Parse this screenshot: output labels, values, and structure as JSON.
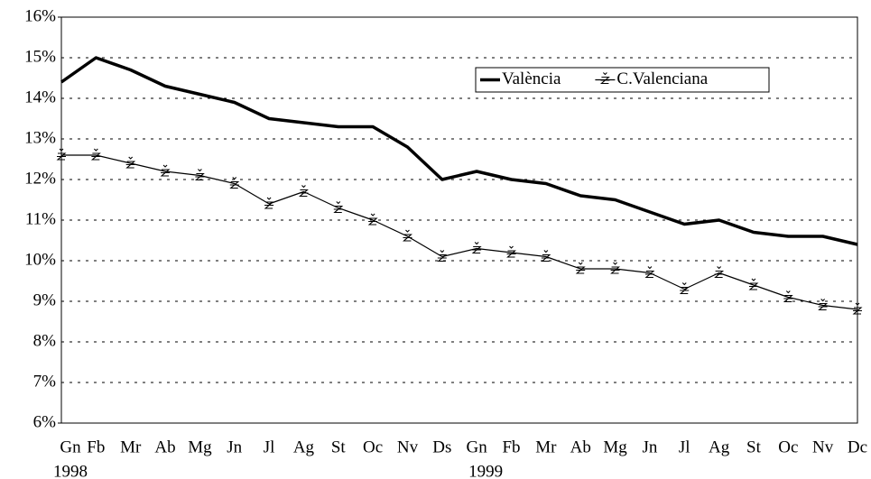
{
  "chart_data": {
    "type": "line",
    "categories": [
      "Gn",
      "Fb",
      "Mr",
      "Ab",
      "Mg",
      "Jn",
      "Jl",
      "Ag",
      "St",
      "Oc",
      "Nv",
      "Ds",
      "Gn",
      "Fb",
      "Mr",
      "Ab",
      "Mg",
      "Jn",
      "Jl",
      "Ag",
      "St",
      "Oc",
      "Nv",
      "Dc"
    ],
    "years": [
      "1998",
      "1999"
    ],
    "series": [
      {
        "name": "València",
        "color": "#000000",
        "marker": false,
        "values": [
          14.4,
          15.0,
          14.7,
          14.3,
          14.1,
          13.9,
          13.5,
          13.4,
          13.3,
          13.3,
          12.8,
          12.0,
          12.2,
          12.0,
          11.9,
          11.6,
          11.5,
          11.2,
          10.9,
          11.0,
          10.7,
          10.6,
          10.6,
          10.4
        ]
      },
      {
        "name": "C.Valenciana",
        "color": "#000000",
        "marker": true,
        "values": [
          12.6,
          12.6,
          12.4,
          12.2,
          12.1,
          11.9,
          11.4,
          11.7,
          11.3,
          11.0,
          10.6,
          10.1,
          10.3,
          10.2,
          10.1,
          9.8,
          9.8,
          9.7,
          9.3,
          9.7,
          9.4,
          9.1,
          8.9,
          8.8
        ]
      }
    ],
    "ylim": [
      6,
      16
    ],
    "yticks": [
      {
        "value": 6,
        "label": "6%"
      },
      {
        "value": 7,
        "label": "7%"
      },
      {
        "value": 8,
        "label": "8%"
      },
      {
        "value": 9,
        "label": "9%"
      },
      {
        "value": 10,
        "label": "10%"
      },
      {
        "value": 11,
        "label": "11%"
      },
      {
        "value": 12,
        "label": "12%"
      },
      {
        "value": 13,
        "label": "13%"
      },
      {
        "value": 14,
        "label": "14%"
      },
      {
        "value": 15,
        "label": "15%"
      },
      {
        "value": 16,
        "label": "16%"
      }
    ],
    "grid": true,
    "legend": "upper right"
  }
}
